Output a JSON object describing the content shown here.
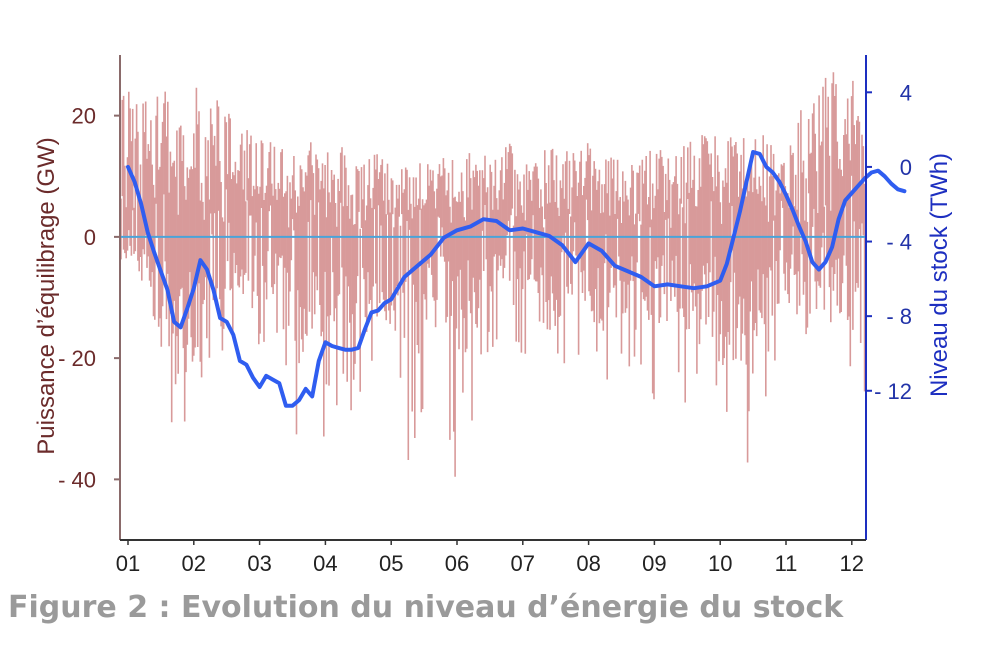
{
  "caption": "Figure 2 : Evolution du niveau d’énergie du stock",
  "chart_data": {
    "type": "line",
    "x_categories": [
      "01",
      "02",
      "03",
      "04",
      "05",
      "06",
      "07",
      "08",
      "09",
      "10",
      "11",
      "12"
    ],
    "y_left": {
      "label": "Puissance d’équilibrage (GW)",
      "range": [
        -50,
        30
      ],
      "ticks": [
        20,
        0,
        -20,
        -40
      ],
      "tick_labels": [
        "20",
        "0",
        "- 20",
        "- 40"
      ],
      "color": "#6b2b2b"
    },
    "y_right": {
      "label": "Niveau du stock (TWh)",
      "range": [
        -20,
        6
      ],
      "ticks": [
        4,
        0,
        -4,
        -8,
        -12
      ],
      "tick_labels": [
        "4",
        "0",
        "- 4",
        "- 8",
        "- 12"
      ],
      "color": "#1d2fc0"
    },
    "grid": false,
    "zero_line_color": "#4aa3d9",
    "series": [
      {
        "axis": "left",
        "color": "#d89a9a",
        "style": "dense-hourly",
        "x": [
          0,
          0.25,
          0.5,
          0.75,
          1,
          1.25,
          1.5,
          1.75,
          2,
          2.25,
          2.5,
          2.75,
          3,
          3.25,
          3.5,
          3.75,
          4,
          4.25,
          4.5,
          4.75,
          5,
          5.25,
          5.5,
          5.75,
          6,
          6.25,
          6.5,
          6.75,
          7,
          7.25,
          7.5,
          7.75,
          8,
          8.25,
          8.5,
          8.75,
          9,
          9.25,
          9.5,
          9.75,
          10,
          10.25,
          10.5,
          10.75,
          11,
          11.25,
          11.5
        ],
        "upper": [
          25,
          27,
          26,
          22,
          25,
          24,
          22,
          19,
          18,
          16,
          14,
          16,
          14,
          16,
          12,
          14,
          12,
          12,
          13,
          14,
          14,
          15,
          14,
          16,
          13,
          15,
          15,
          15,
          16,
          13,
          14,
          15,
          16,
          14,
          16,
          17,
          20,
          16,
          17,
          18,
          14,
          22,
          26,
          28,
          27,
          15,
          8
        ],
        "lower": [
          -5,
          -10,
          -28,
          -32,
          -38,
          -20,
          -20,
          -18,
          -18,
          -20,
          -33,
          -35,
          -40,
          -38,
          -28,
          -25,
          -22,
          -38,
          -30,
          -28,
          -45,
          -30,
          -20,
          -15,
          -20,
          -18,
          -28,
          -20,
          -30,
          -25,
          -25,
          -20,
          -32,
          -25,
          -28,
          -35,
          -25,
          -48,
          -32,
          -25,
          -20,
          -18,
          -15,
          -20,
          -32,
          -38,
          -22
        ],
        "median_band": [
          10,
          6,
          -3,
          -10
        ]
      },
      {
        "axis": "right",
        "color": "#2f5df0",
        "x": [
          0,
          0.1,
          0.2,
          0.3,
          0.4,
          0.5,
          0.6,
          0.7,
          0.8,
          0.9,
          1.0,
          1.1,
          1.2,
          1.3,
          1.4,
          1.5,
          1.6,
          1.7,
          1.8,
          1.9,
          2.0,
          2.1,
          2.2,
          2.3,
          2.4,
          2.5,
          2.6,
          2.7,
          2.8,
          2.9,
          3.0,
          3.1,
          3.2,
          3.3,
          3.4,
          3.5,
          3.6,
          3.7,
          3.8,
          3.9,
          4.0,
          4.2,
          4.4,
          4.6,
          4.8,
          5.0,
          5.2,
          5.4,
          5.6,
          5.8,
          6.0,
          6.2,
          6.4,
          6.6,
          6.8,
          7.0,
          7.2,
          7.4,
          7.6,
          7.8,
          8.0,
          8.2,
          8.4,
          8.6,
          8.8,
          9.0,
          9.1,
          9.2,
          9.3,
          9.4,
          9.5,
          9.6,
          9.7,
          9.8,
          9.9,
          10.0,
          10.1,
          10.2,
          10.3,
          10.4,
          10.5,
          10.6,
          10.7,
          10.8,
          10.9,
          11.0,
          11.1,
          11.2,
          11.3,
          11.4,
          11.5,
          11.6,
          11.7,
          11.8
        ],
        "values": [
          0,
          -0.8,
          -2.0,
          -3.5,
          -4.6,
          -5.6,
          -6.6,
          -8.3,
          -8.6,
          -7.6,
          -6.5,
          -5.0,
          -5.5,
          -6.6,
          -8.1,
          -8.3,
          -9.0,
          -10.4,
          -10.6,
          -11.3,
          -11.8,
          -11.2,
          -11.4,
          -11.6,
          -12.8,
          -12.8,
          -12.5,
          -11.9,
          -12.3,
          -10.4,
          -9.4,
          -9.6,
          -9.7,
          -9.8,
          -9.8,
          -9.7,
          -8.7,
          -7.8,
          -7.7,
          -7.3,
          -7.1,
          -5.9,
          -5.3,
          -4.7,
          -3.8,
          -3.4,
          -3.2,
          -2.8,
          -2.9,
          -3.4,
          -3.3,
          -3.5,
          -3.7,
          -4.2,
          -5.1,
          -4.1,
          -4.5,
          -5.3,
          -5.6,
          -5.9,
          -6.4,
          -6.3,
          -6.4,
          -6.5,
          -6.4,
          -6.1,
          -5.2,
          -3.8,
          -2.4,
          -0.8,
          0.8,
          0.7,
          0.0,
          -0.3,
          -0.8,
          -1.5,
          -2.3,
          -3.2,
          -4.0,
          -5.1,
          -5.5,
          -5.1,
          -4.3,
          -2.8,
          -1.8,
          -1.4,
          -1.0,
          -0.6,
          -0.3,
          -0.2,
          -0.5,
          -0.9,
          -1.2,
          -1.3
        ]
      }
    ]
  }
}
